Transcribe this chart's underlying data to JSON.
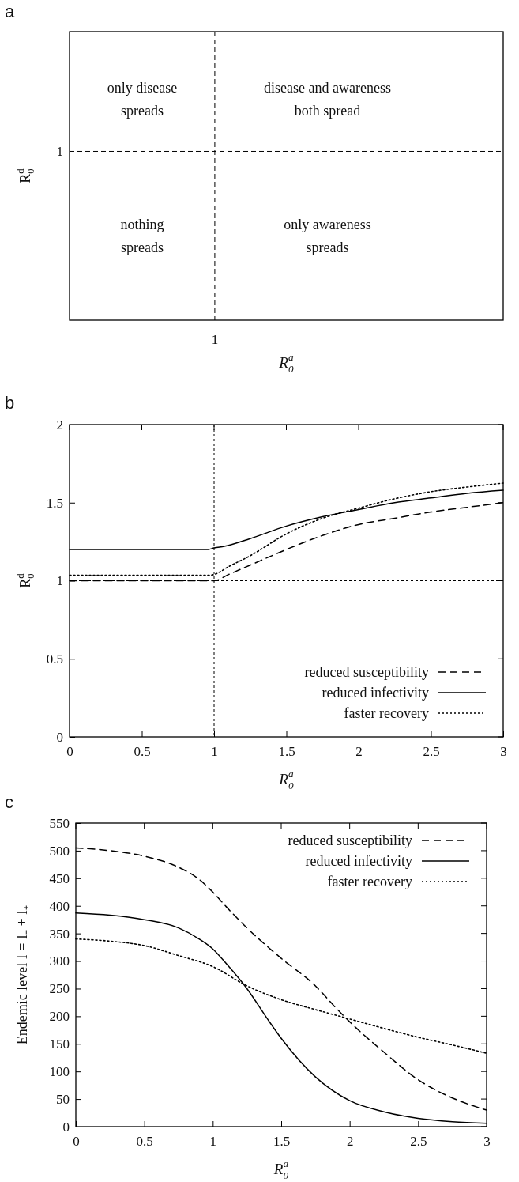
{
  "chart_data": [
    {
      "type": "other",
      "title": "a",
      "xlabel": "R$_{0}$$^{a}$",
      "ylabel": "R$_{0}$$^{d}$",
      "ref_lines": [
        {
          "axis": "x",
          "label": "1",
          "line_style": "dashed"
        },
        {
          "axis": "y",
          "label": "1",
          "line_style": "dashed"
        }
      ],
      "annotations": [
        "only disease\nspreads",
        "disease and awareness\nboth spread",
        "nothing\nspreads",
        "only awareness\nspreads"
      ]
    },
    {
      "type": "line",
      "title": "b",
      "xlabel": "R$_{0}$$^{a}$",
      "ylabel": "R$_{0}$$^{d}$",
      "xlim": [
        0,
        3
      ],
      "ylim": [
        0,
        2
      ],
      "xticks": [
        0,
        0.5,
        1,
        1.5,
        2,
        2.5,
        3
      ],
      "yticks": [
        0,
        0.5,
        1,
        1.5,
        2
      ],
      "grid": false,
      "legend": "bottom right",
      "ref_lines": [
        {
          "axis": "x",
          "value": 1,
          "line_style": "dotted"
        },
        {
          "axis": "y",
          "value": 1,
          "line_style": "dotted"
        }
      ],
      "series": [
        {
          "name": "reduced susceptibility",
          "color": "#000000",
          "line_style": "dashed",
          "x": [
            0,
            0.97,
            1.0,
            1.1,
            1.25,
            1.5,
            1.75,
            2,
            2.25,
            2.5,
            2.75,
            3
          ],
          "values": [
            1.0,
            1.0,
            1.0,
            1.04,
            1.1,
            1.2,
            1.29,
            1.36,
            1.4,
            1.44,
            1.47,
            1.5
          ]
        },
        {
          "name": "reduced infectivity",
          "color": "#000000",
          "line_style": "solid",
          "x": [
            0,
            0.96,
            1.0,
            1.07,
            1.25,
            1.5,
            1.75,
            2,
            2.25,
            2.5,
            2.75,
            3
          ],
          "values": [
            1.2,
            1.2,
            1.21,
            1.22,
            1.27,
            1.35,
            1.41,
            1.456,
            1.5,
            1.53,
            1.56,
            1.58
          ]
        },
        {
          "name": "faster recovery",
          "color": "#000000",
          "line_style": "dotted",
          "x": [
            0,
            0.97,
            1.0,
            1.1,
            1.25,
            1.5,
            1.75,
            2,
            2.25,
            2.5,
            2.75,
            3
          ],
          "values": [
            1.035,
            1.035,
            1.04,
            1.09,
            1.16,
            1.3,
            1.4,
            1.465,
            1.525,
            1.57,
            1.6,
            1.625
          ]
        }
      ]
    },
    {
      "type": "line",
      "title": "c",
      "xlabel": "R$_{0}$$^{a}$",
      "ylabel": "Endemic level I = I₋ + I₊",
      "xlim": [
        0,
        3
      ],
      "ylim": [
        0,
        550
      ],
      "xticks": [
        0,
        0.5,
        1,
        1.5,
        2,
        2.5,
        3
      ],
      "yticks": [
        0,
        50,
        100,
        150,
        200,
        250,
        300,
        350,
        400,
        450,
        500,
        550
      ],
      "grid": false,
      "legend": "top right",
      "series": [
        {
          "name": "reduced susceptibility",
          "color": "#000000",
          "line_style": "dashed",
          "x": [
            0,
            0.25,
            0.5,
            0.75,
            0.9,
            1,
            1.1,
            1.25,
            1.5,
            1.75,
            1.9,
            2,
            2.25,
            2.5,
            2.75,
            3
          ],
          "values": [
            505,
            500,
            490,
            470,
            448,
            425,
            398,
            360,
            305,
            255,
            215,
            190,
            135,
            85,
            52,
            30
          ]
        },
        {
          "name": "reduced infectivity",
          "color": "#000000",
          "line_style": "solid",
          "x": [
            0,
            0.25,
            0.5,
            0.75,
            0.9,
            1,
            1.1,
            1.25,
            1.4,
            1.5,
            1.75,
            2,
            2.25,
            2.5,
            2.75,
            3
          ],
          "values": [
            387,
            383,
            375,
            360,
            340,
            322,
            295,
            250,
            195,
            160,
            90,
            47,
            27,
            15,
            9,
            6
          ]
        },
        {
          "name": "faster recovery",
          "color": "#000000",
          "line_style": "dotted",
          "x": [
            0,
            0.25,
            0.5,
            0.75,
            1,
            1.25,
            1.5,
            1.75,
            2,
            2.25,
            2.5,
            2.75,
            3
          ],
          "values": [
            340,
            336,
            328,
            310,
            290,
            255,
            230,
            212,
            195,
            178,
            162,
            148,
            133
          ]
        }
      ]
    }
  ]
}
